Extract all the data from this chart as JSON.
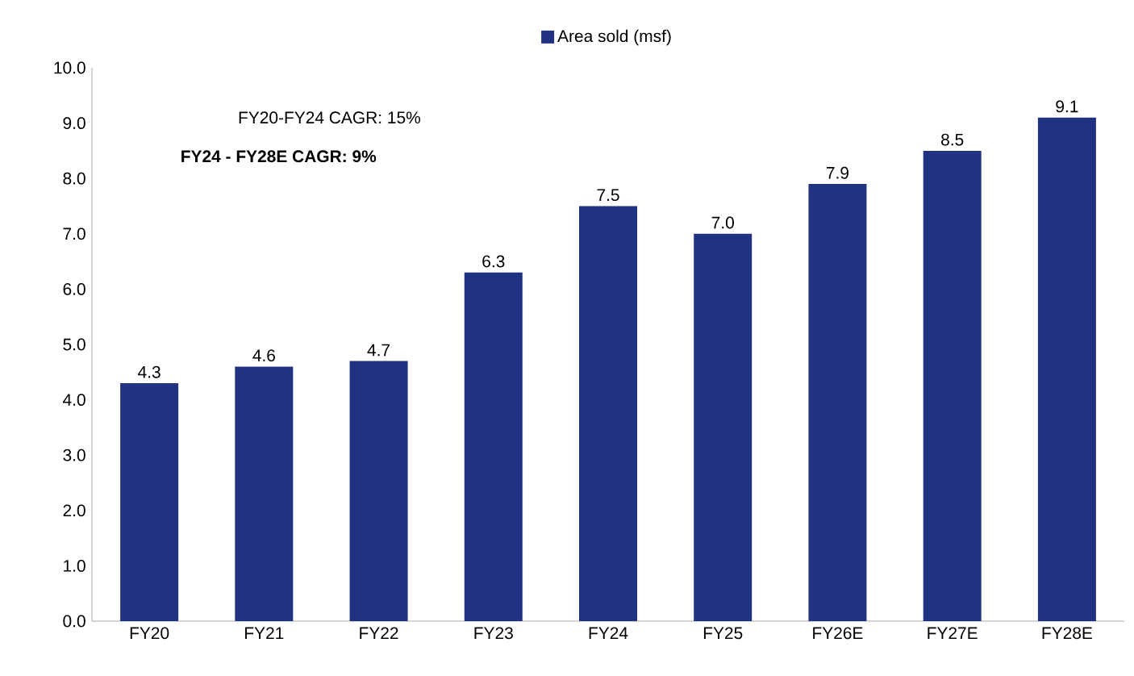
{
  "chart_data": {
    "type": "bar",
    "categories": [
      "FY20",
      "FY21",
      "FY22",
      "FY23",
      "FY24",
      "FY25",
      "FY26E",
      "FY27E",
      "FY28E"
    ],
    "series": [
      {
        "name": "Area sold (msf)",
        "color": "#213282",
        "values": [
          4.3,
          4.6,
          4.7,
          6.3,
          7.5,
          7.0,
          7.9,
          8.5,
          9.1
        ],
        "value_labels": [
          "4.3",
          "4.6",
          "4.7",
          "6.3",
          "7.5",
          "7.0",
          "7.9",
          "8.5",
          "9.1"
        ]
      }
    ],
    "ylim": [
      0,
      10
    ],
    "yticks": [
      {
        "value": 0,
        "label": "0.0"
      },
      {
        "value": 1,
        "label": "1.0"
      },
      {
        "value": 2,
        "label": "2.0"
      },
      {
        "value": 3,
        "label": "3.0"
      },
      {
        "value": 4,
        "label": "4.0"
      },
      {
        "value": 5,
        "label": "5.0"
      },
      {
        "value": 6,
        "label": "6.0"
      },
      {
        "value": 7,
        "label": "7.0"
      },
      {
        "value": 8,
        "label": "8.0"
      },
      {
        "value": 9,
        "label": "9.0"
      },
      {
        "value": 10,
        "label": "10.0"
      }
    ],
    "annotations": [
      "FY20-FY24 CAGR: 15%",
      "**FY24 - FY28E CAGR: 9%**"
    ],
    "legend": "top"
  }
}
